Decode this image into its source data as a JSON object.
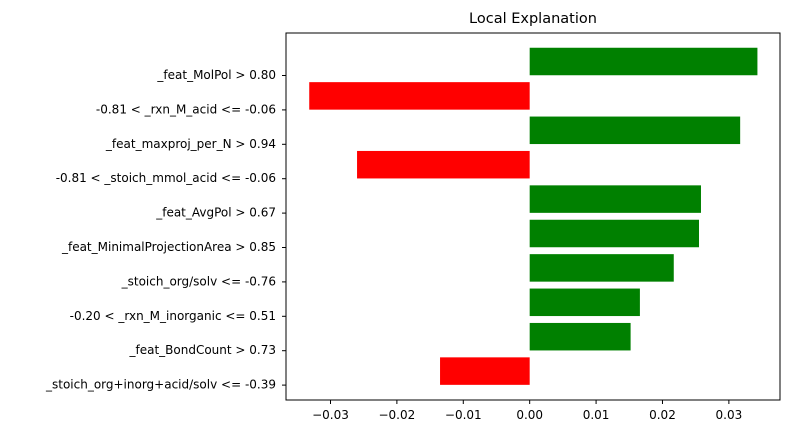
{
  "chart_data": {
    "type": "bar",
    "orientation": "horizontal",
    "title": "Local Explanation",
    "xlabel": "",
    "ylabel": "",
    "xlim": [
      -0.0367,
      0.0377
    ],
    "xticks": [
      -0.03,
      -0.02,
      -0.01,
      0.0,
      0.01,
      0.02,
      0.03
    ],
    "xtick_labels": [
      "−0.03",
      "−0.02",
      "−0.01",
      "0.00",
      "0.01",
      "0.02",
      "0.03"
    ],
    "grid": false,
    "categories": [
      "_feat_MolPol > 0.80",
      "-0.81 < _rxn_M_acid <= -0.06",
      "_feat_maxproj_per_N > 0.94",
      "-0.81 < _stoich_mmol_acid <= -0.06",
      "_feat_AvgPol > 0.67",
      "_feat_MinimalProjectionArea > 0.85",
      "_stoich_org/solv <= -0.76",
      "-0.20 < _rxn_M_inorganic <= 0.51",
      "_feat_BondCount > 0.73",
      "_stoich_org+inorg+acid/solv <= -0.39"
    ],
    "values": [
      0.0343,
      -0.0332,
      0.0317,
      -0.026,
      0.0258,
      0.0255,
      0.0217,
      0.0166,
      0.0152,
      -0.0135
    ],
    "colors": {
      "positive": "#008000",
      "negative": "#ff0000"
    }
  }
}
